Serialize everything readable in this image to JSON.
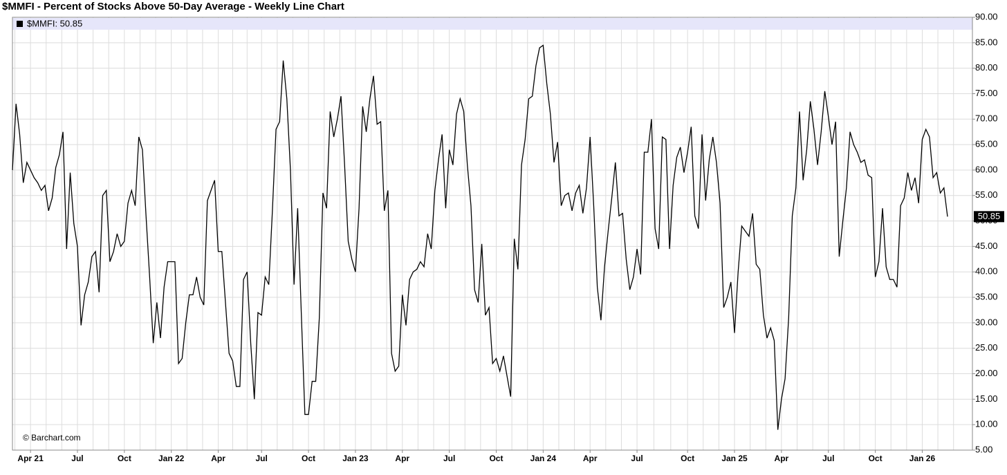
{
  "chart_data": {
    "type": "line",
    "title": "$MMFI - Percent of Stocks Above 50-Day Average - Weekly Line Chart",
    "source": "© Barchart.com",
    "categories": [
      null,
      null,
      null,
      null,
      null,
      "Apr 21",
      null,
      null,
      null,
      null,
      null,
      null,
      null,
      null,
      null,
      null,
      null,
      null,
      "Jul",
      null,
      null,
      null,
      null,
      null,
      null,
      null,
      null,
      null,
      null,
      null,
      null,
      "Oct",
      null,
      null,
      null,
      null,
      null,
      null,
      null,
      null,
      null,
      null,
      null,
      null,
      "Jan 22",
      null,
      null,
      null,
      null,
      null,
      null,
      null,
      null,
      null,
      null,
      null,
      null,
      "Apr",
      null,
      null,
      null,
      null,
      null,
      null,
      null,
      null,
      null,
      null,
      null,
      "Jul",
      null,
      null,
      null,
      null,
      null,
      null,
      null,
      null,
      null,
      null,
      null,
      null,
      "Oct",
      null,
      null,
      null,
      null,
      null,
      null,
      null,
      null,
      null,
      null,
      null,
      null,
      "Jan 23",
      null,
      null,
      null,
      null,
      null,
      null,
      null,
      null,
      null,
      null,
      null,
      null,
      "Apr",
      null,
      null,
      null,
      null,
      null,
      null,
      null,
      null,
      null,
      null,
      null,
      null,
      "Jul",
      null,
      null,
      null,
      null,
      null,
      null,
      null,
      null,
      null,
      null,
      null,
      null,
      "Oct",
      null,
      null,
      null,
      null,
      null,
      null,
      null,
      null,
      null,
      null,
      null,
      null,
      "Jan 24",
      null,
      null,
      null,
      null,
      null,
      null,
      null,
      null,
      null,
      null,
      null,
      null,
      "Apr",
      null,
      null,
      null,
      null,
      null,
      null,
      null,
      null,
      null,
      null,
      null,
      null,
      "Jul",
      null,
      null,
      null,
      null,
      null,
      null,
      null,
      null,
      null,
      null,
      null,
      null,
      null,
      "Oct",
      null,
      null,
      null,
      null,
      null,
      null,
      null,
      null,
      null,
      null,
      null,
      null,
      "Jan 25",
      null,
      null,
      null,
      null,
      null,
      null,
      null,
      null,
      null,
      null,
      null,
      null,
      "Apr",
      null,
      null,
      null,
      null,
      null,
      null,
      null,
      null,
      null,
      null,
      null,
      null,
      "Jul",
      null,
      null,
      null,
      null,
      null,
      null,
      null,
      null,
      null,
      null,
      null,
      null,
      "Oct",
      null,
      null,
      null,
      null,
      null,
      null,
      null,
      null,
      null,
      null,
      null,
      null,
      "Jan 26",
      null,
      null,
      null,
      null,
      null,
      null,
      null
    ],
    "series": [
      {
        "name": "$MMFI: 50.85",
        "color": "#000000",
        "values": [
          60,
          73,
          67,
          57.5,
          61.5,
          60,
          58.5,
          57.5,
          56,
          57,
          52,
          54.5,
          60.5,
          63,
          67.5,
          44.5,
          59.5,
          49.5,
          45,
          29.5,
          35.5,
          38,
          43,
          44,
          36,
          55,
          56,
          42,
          44,
          47.5,
          45,
          46,
          53.5,
          56,
          53,
          66.5,
          64,
          51,
          39,
          26,
          34,
          27,
          37,
          42,
          42,
          42,
          22,
          23,
          30,
          35.5,
          35.5,
          39,
          35,
          33.5,
          54,
          56,
          58,
          44,
          44,
          34,
          24,
          22.5,
          17.5,
          17.5,
          38.5,
          40,
          26,
          15,
          32,
          31.5,
          39,
          37.5,
          52,
          68,
          69.5,
          81.5,
          74,
          60,
          37.5,
          52.5,
          32,
          12,
          12,
          18.5,
          18.5,
          31,
          55.5,
          52.5,
          71.5,
          66.5,
          70,
          74.5,
          61,
          46,
          42.5,
          40,
          52.5,
          72.5,
          67.5,
          74,
          78.5,
          69,
          69.5,
          52,
          56,
          24,
          20.5,
          21.5,
          35.5,
          29.5,
          38.5,
          40,
          40.5,
          42,
          41,
          47.5,
          44.5,
          56,
          62,
          67,
          52.5,
          64,
          61,
          71,
          74,
          71.5,
          61,
          53,
          36.5,
          34,
          45.5,
          31.5,
          33,
          22,
          23,
          20.5,
          23.5,
          19.5,
          15.5,
          46.5,
          40.5,
          61,
          66,
          74,
          74.5,
          80.5,
          84,
          84.5,
          77,
          71,
          61.5,
          65.5,
          53,
          55,
          55.5,
          52,
          55.5,
          57,
          51.5,
          56.5,
          66.5,
          53,
          37,
          30.5,
          41,
          48,
          54.5,
          61.5,
          51,
          51.5,
          42.5,
          36.5,
          39,
          44.5,
          39.5,
          63.5,
          63.5,
          70,
          48.5,
          44.5,
          66.5,
          66,
          44.5,
          57,
          62.5,
          64.5,
          59.5,
          63.5,
          68.5,
          51,
          48.5,
          67,
          54,
          62,
          66.5,
          61.5,
          53.5,
          33,
          35,
          38,
          28,
          40,
          49,
          48,
          47,
          51.5,
          41.5,
          40.5,
          31.5,
          27,
          29,
          26.5,
          9,
          15,
          19,
          31,
          51,
          56.5,
          71.5,
          58,
          64,
          73.5,
          68,
          61,
          67.5,
          75.5,
          70.5,
          65,
          69.5,
          43,
          50,
          56.5,
          67.5,
          65,
          63.5,
          61.5,
          62,
          59,
          58.5,
          39,
          42,
          52.5,
          41,
          38.5,
          38.5,
          37,
          53,
          54.5,
          59.5,
          56,
          58.5,
          53.5,
          66,
          68,
          66.5,
          58.5,
          59.5,
          55.5,
          56.5,
          50.85
        ]
      }
    ],
    "ylim": [
      5,
      90
    ],
    "yticks": [
      {
        "value": 5,
        "label": "5.00"
      },
      {
        "value": 10,
        "label": "10.00"
      },
      {
        "value": 15,
        "label": "15.00"
      },
      {
        "value": 20,
        "label": "20.00"
      },
      {
        "value": 25,
        "label": "25.00"
      },
      {
        "value": 30,
        "label": "30.00"
      },
      {
        "value": 35,
        "label": "35.00"
      },
      {
        "value": 40,
        "label": "40.00"
      },
      {
        "value": 45,
        "label": "45.00"
      },
      {
        "value": 50,
        "label": "50.00"
      },
      {
        "value": 55,
        "label": "55.00"
      },
      {
        "value": 60,
        "label": "60.00"
      },
      {
        "value": 65,
        "label": "65.00"
      },
      {
        "value": 70,
        "label": "70.00"
      },
      {
        "value": 75,
        "label": "75.00"
      },
      {
        "value": 80,
        "label": "80.00"
      },
      {
        "value": 85,
        "label": "85.00"
      },
      {
        "value": 90,
        "label": "90.00"
      }
    ],
    "grid": true,
    "legend": "top-left"
  }
}
